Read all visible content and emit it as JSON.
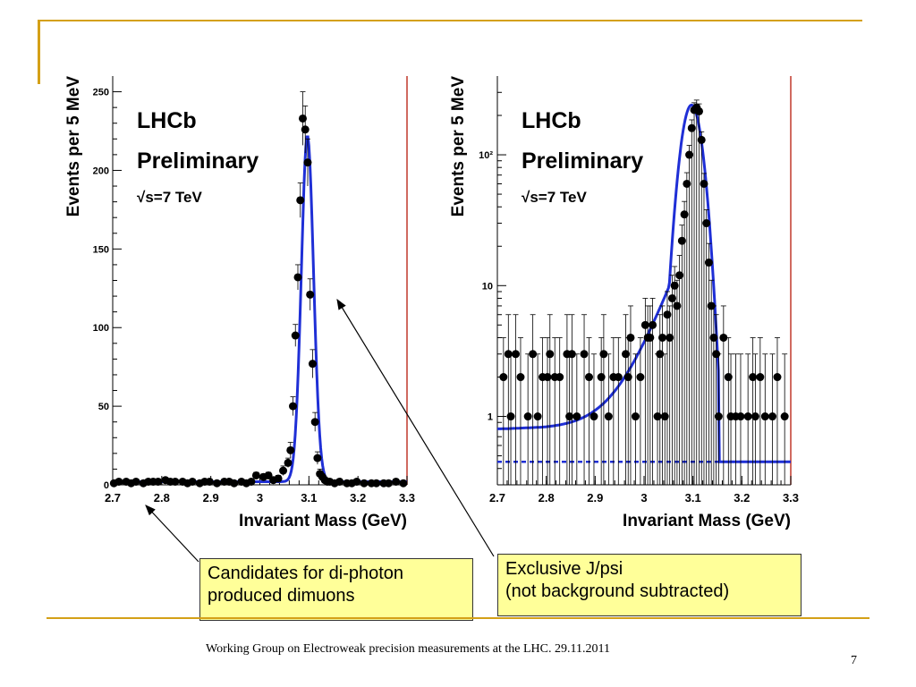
{
  "colors": {
    "accent": "#d4a017",
    "fit": "#1f2fd6",
    "callout_bg": "#ffff99",
    "frame_right": "#c0392b"
  },
  "chart_data": [
    {
      "type": "scatter",
      "ylabel": "Events per 5 MeV",
      "xlabel": "Invariant Mass (GeV)",
      "xlim": [
        2.7,
        3.3
      ],
      "ylim": [
        0,
        260
      ],
      "yscale": "linear",
      "xticks": [
        "2.7",
        "2.8",
        "2.9",
        "3",
        "3.1",
        "3.2",
        "3.3"
      ],
      "yticks": [
        "0",
        "50",
        "100",
        "150",
        "200",
        "250"
      ],
      "annotations": [
        "LHCb",
        "Preliminary",
        "√s=7 TeV"
      ],
      "series": [
        {
          "kind": "points",
          "x": [
            2.7025,
            2.7125,
            2.7275,
            2.7375,
            2.7475,
            2.7625,
            2.7725,
            2.7825,
            2.7925,
            2.8075,
            2.8175,
            2.8275,
            2.8425,
            2.8525,
            2.8625,
            2.8775,
            2.8875,
            2.8975,
            2.9125,
            2.9275,
            2.9375,
            2.9475,
            2.9625,
            2.9725,
            2.9825,
            2.9925,
            3.0075,
            3.0175,
            3.0275,
            3.0375,
            3.0475,
            3.0575,
            3.0625,
            3.0675,
            3.0725,
            3.0775,
            3.0825,
            3.0875,
            3.0925,
            3.0975,
            3.1025,
            3.1075,
            3.1125,
            3.1175,
            3.1225,
            3.1275,
            3.1325,
            3.1375,
            3.1425,
            3.1525,
            3.1625,
            3.1775,
            3.1875,
            3.1975,
            3.2125,
            3.2275,
            3.2375,
            3.2525,
            3.2625,
            3.2775,
            3.2925
          ],
          "y": [
            1,
            2,
            2,
            1,
            2,
            1,
            2,
            2,
            2,
            3,
            2,
            2,
            2,
            1,
            2,
            1,
            2,
            2,
            1,
            2,
            2,
            1,
            2,
            1,
            2,
            6,
            5,
            6,
            3,
            4,
            9,
            14,
            22,
            50,
            95,
            132,
            181,
            233,
            226,
            205,
            121,
            77,
            40,
            17,
            7,
            5,
            3,
            2,
            2,
            1,
            2,
            1,
            1,
            2,
            1,
            1,
            1,
            1,
            1,
            2,
            1
          ],
          "err_top": [
            2,
            3,
            3,
            2,
            3,
            2,
            3,
            3,
            3,
            3,
            3,
            3,
            3,
            2,
            3,
            2,
            3,
            3,
            2,
            3,
            3,
            2,
            3,
            2,
            3,
            8,
            7,
            8,
            5,
            6,
            12,
            17,
            27,
            56,
            102,
            140,
            192,
            250,
            241,
            220,
            131,
            86,
            46,
            21,
            10,
            7,
            5,
            3,
            3,
            2,
            3,
            2,
            2,
            3,
            2,
            2,
            2,
            2,
            2,
            3,
            2
          ]
        },
        {
          "kind": "fit",
          "peak_x": 3.097,
          "peak_y": 220,
          "baseline_y": 2
        }
      ]
    },
    {
      "type": "scatter",
      "ylabel": "Events per 5 MeV",
      "xlabel": "Invariant Mass (GeV)",
      "xlim": [
        2.7,
        3.3
      ],
      "ylim": [
        0.3,
        400
      ],
      "yscale": "log",
      "xticks": [
        "2.7",
        "2.8",
        "2.9",
        "3",
        "3.1",
        "3.2",
        "3.3"
      ],
      "yticks": [
        "1",
        "10",
        "10²"
      ],
      "annotations": [
        "LHCb",
        "Preliminary",
        "√s=7 TeV"
      ],
      "series": [
        {
          "kind": "points",
          "x": [
            2.7125,
            2.7225,
            2.7275,
            2.7375,
            2.7475,
            2.7625,
            2.7725,
            2.7825,
            2.7925,
            2.8025,
            2.8075,
            2.8175,
            2.8275,
            2.8425,
            2.8475,
            2.8525,
            2.8625,
            2.8775,
            2.8875,
            2.8975,
            2.9125,
            2.9175,
            2.9275,
            2.9375,
            2.9475,
            2.9625,
            2.9675,
            2.9725,
            2.9825,
            2.9925,
            3.0025,
            3.0075,
            3.0125,
            3.0175,
            3.0275,
            3.0325,
            3.0375,
            3.0425,
            3.0475,
            3.0525,
            3.0575,
            3.0625,
            3.0675,
            3.0725,
            3.0775,
            3.0825,
            3.0875,
            3.0925,
            3.0975,
            3.1025,
            3.1075,
            3.1125,
            3.1175,
            3.1225,
            3.1275,
            3.1325,
            3.1375,
            3.1425,
            3.1475,
            3.1525,
            3.1625,
            3.1725,
            3.1775,
            3.1875,
            3.1975,
            3.2125,
            3.2225,
            3.2275,
            3.2375,
            3.2475,
            3.2625,
            3.2725,
            3.2875
          ],
          "y": [
            2,
            3,
            1,
            3,
            2,
            1,
            3,
            1,
            2,
            2,
            3,
            2,
            2,
            3,
            1,
            3,
            1,
            3,
            2,
            1,
            2,
            3,
            1,
            2,
            2,
            3,
            2,
            4,
            1,
            2,
            5,
            4,
            4,
            5,
            1,
            3,
            4,
            1,
            6,
            4,
            8,
            10,
            7,
            12,
            22,
            35,
            60,
            100,
            160,
            220,
            230,
            215,
            130,
            60,
            30,
            15,
            7,
            4,
            3,
            1,
            4,
            2,
            1,
            1,
            1,
            1,
            2,
            1,
            2,
            1,
            1,
            2,
            1
          ],
          "err_top": [
            4,
            6,
            3,
            6,
            4,
            3,
            6,
            3,
            4,
            4,
            6,
            4,
            4,
            6,
            3,
            6,
            3,
            6,
            4,
            3,
            4,
            6,
            3,
            4,
            4,
            6,
            4,
            7,
            3,
            4,
            8,
            7,
            7,
            8,
            3,
            6,
            7,
            3,
            9,
            7,
            12,
            14,
            11,
            17,
            29,
            44,
            73,
            118,
            185,
            250,
            262,
            245,
            150,
            72,
            38,
            21,
            11,
            7,
            6,
            3,
            7,
            4,
            3,
            3,
            3,
            3,
            4,
            3,
            4,
            3,
            3,
            4,
            3
          ]
        },
        {
          "kind": "fit",
          "peak_x": 3.097,
          "peak_y": 240,
          "tail_start_y": 0.8,
          "baseline_y": 0.45
        }
      ]
    }
  ],
  "callouts": {
    "left": [
      "Candidates for di-photon",
      "produced dimuons"
    ],
    "right": [
      "Exclusive J/psi",
      "(not background subtracted)"
    ]
  },
  "footer": {
    "text": "Working Group on Electroweak precision measurements at the LHC.  29.11.2011",
    "page": "7"
  }
}
